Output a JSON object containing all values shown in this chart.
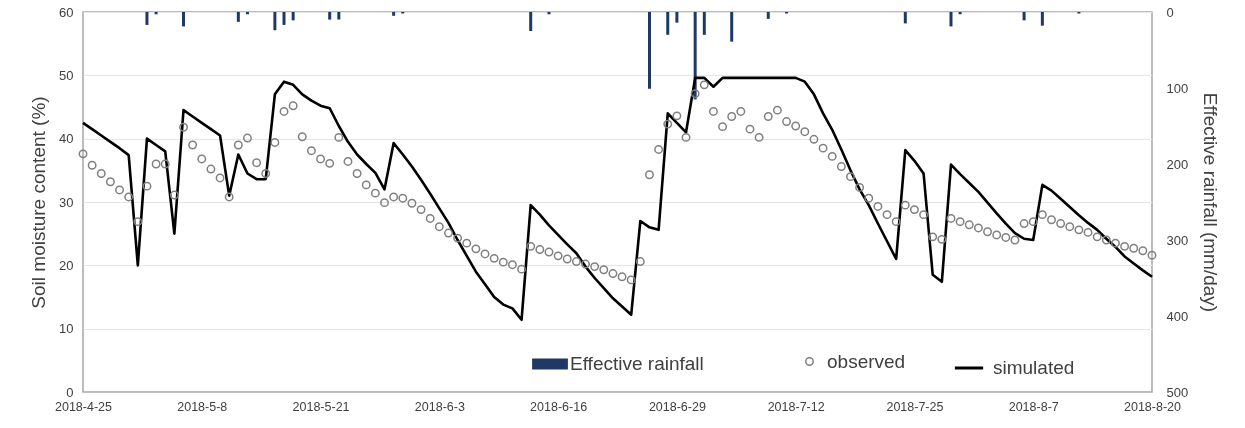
{
  "chart_data": {
    "type": "line",
    "xlabel": null,
    "ylabel": "Soil moisture content (%)",
    "y2label": "Effective rainfall (mm/day)",
    "x": [
      "2018-04-25",
      "2018-04-26",
      "2018-04-27",
      "2018-04-28",
      "2018-04-29",
      "2018-04-30",
      "2018-05-01",
      "2018-05-02",
      "2018-05-03",
      "2018-05-04",
      "2018-05-05",
      "2018-05-06",
      "2018-05-07",
      "2018-05-08",
      "2018-05-09",
      "2018-05-10",
      "2018-05-11",
      "2018-05-12",
      "2018-05-13",
      "2018-05-14",
      "2018-05-15",
      "2018-05-16",
      "2018-05-17",
      "2018-05-18",
      "2018-05-19",
      "2018-05-20",
      "2018-05-21",
      "2018-05-22",
      "2018-05-23",
      "2018-05-24",
      "2018-05-25",
      "2018-05-26",
      "2018-05-27",
      "2018-05-28",
      "2018-05-29",
      "2018-05-30",
      "2018-05-31",
      "2018-06-01",
      "2018-06-02",
      "2018-06-03",
      "2018-06-04",
      "2018-06-05",
      "2018-06-06",
      "2018-06-07",
      "2018-06-08",
      "2018-06-09",
      "2018-06-10",
      "2018-06-11",
      "2018-06-12",
      "2018-06-13",
      "2018-06-14",
      "2018-06-15",
      "2018-06-16",
      "2018-06-17",
      "2018-06-18",
      "2018-06-19",
      "2018-06-20",
      "2018-06-21",
      "2018-06-22",
      "2018-06-23",
      "2018-06-24",
      "2018-06-25",
      "2018-06-26",
      "2018-06-27",
      "2018-06-28",
      "2018-06-29",
      "2018-06-30",
      "2018-07-01",
      "2018-07-02",
      "2018-07-03",
      "2018-07-04",
      "2018-07-05",
      "2018-07-06",
      "2018-07-07",
      "2018-07-08",
      "2018-07-09",
      "2018-07-10",
      "2018-07-11",
      "2018-07-12",
      "2018-07-13",
      "2018-07-14",
      "2018-07-15",
      "2018-07-16",
      "2018-07-17",
      "2018-07-18",
      "2018-07-19",
      "2018-07-20",
      "2018-07-21",
      "2018-07-22",
      "2018-07-23",
      "2018-07-24",
      "2018-07-25",
      "2018-07-26",
      "2018-07-27",
      "2018-07-28",
      "2018-07-29",
      "2018-07-30",
      "2018-07-31",
      "2018-08-01",
      "2018-08-02",
      "2018-08-03",
      "2018-08-04",
      "2018-08-05",
      "2018-08-06",
      "2018-08-07",
      "2018-08-08",
      "2018-08-09",
      "2018-08-10",
      "2018-08-11",
      "2018-08-12",
      "2018-08-13",
      "2018-08-14",
      "2018-08-15",
      "2018-08-16",
      "2018-08-17",
      "2018-08-18",
      "2018-08-19",
      "2018-08-20"
    ],
    "series": [
      {
        "name": "Effective rainfall",
        "type": "bar",
        "axis": "y2",
        "color": "#203864",
        "x": [
          "2018-05-02",
          "2018-05-03",
          "2018-05-06",
          "2018-05-12",
          "2018-05-13",
          "2018-05-16",
          "2018-05-17",
          "2018-05-18",
          "2018-05-22",
          "2018-05-23",
          "2018-05-29",
          "2018-05-30",
          "2018-06-13",
          "2018-06-15",
          "2018-06-26",
          "2018-06-28",
          "2018-06-29",
          "2018-07-01",
          "2018-07-02",
          "2018-07-05",
          "2018-07-09",
          "2018-07-11",
          "2018-07-24",
          "2018-07-29",
          "2018-07-30",
          "2018-08-06",
          "2018-08-08",
          "2018-08-12"
        ],
        "values": [
          17,
          3,
          19,
          13,
          3,
          24,
          17,
          11,
          10,
          10,
          5,
          2,
          25,
          3,
          101,
          30,
          14,
          115,
          30,
          39,
          9,
          2,
          15,
          19,
          3,
          11,
          18,
          2
        ]
      },
      {
        "name": "observed",
        "type": "scatter",
        "marker": "circle",
        "color": "#808080",
        "values": [
          37.6,
          35.8,
          34.5,
          33.2,
          31.9,
          30.8,
          26.9,
          32.5,
          36,
          36,
          31.1,
          41.8,
          39,
          36.8,
          35.2,
          33.8,
          30.8,
          39,
          40.1,
          36.2,
          34.5,
          39.4,
          44.3,
          45.2,
          40.3,
          38.1,
          36.8,
          36.1,
          40.2,
          36.4,
          34.5,
          32.7,
          31.4,
          29.9,
          30.8,
          30.6,
          29.8,
          28.8,
          27.4,
          26.1,
          25.1,
          24.3,
          23.5,
          22.6,
          21.8,
          21.1,
          20.5,
          20.1,
          19.4,
          23,
          22.5,
          22.1,
          21.5,
          21,
          20.6,
          20.2,
          19.8,
          19.3,
          18.7,
          18.2,
          17.7,
          20.6,
          34.3,
          38.3,
          42.3,
          43.6,
          40.2,
          47.1,
          48.5,
          44.3,
          41.9,
          43.5,
          44.3,
          41.5,
          40.2,
          43.5,
          44.5,
          42.7,
          42,
          41.1,
          39.9,
          38.5,
          37.2,
          35.6,
          34,
          32.3,
          30.6,
          29.3,
          28,
          26.9,
          29.5,
          28.8,
          28,
          24.5,
          24.1,
          27.4,
          26.9,
          26.4,
          25.9,
          25.3,
          24.8,
          24.4,
          24,
          26.6,
          26.9,
          28,
          27.2,
          26.6,
          26.1,
          25.6,
          25.2,
          24.5,
          24,
          23.5,
          23,
          22.7,
          22.3,
          21.6
        ]
      },
      {
        "name": "simulated",
        "type": "line",
        "color": "#000000",
        "values": [
          42.5,
          41.5,
          40.5,
          39.5,
          38.5,
          37.4,
          20,
          40,
          39,
          38,
          25,
          44.5,
          43.5,
          42.5,
          41.5,
          40.5,
          31,
          37.5,
          34.5,
          33.6,
          33.6,
          47,
          49,
          48.5,
          47,
          46,
          45.2,
          44.8,
          42,
          39.5,
          37.5,
          36,
          34.6,
          32,
          39.3,
          37.5,
          35.6,
          33.5,
          31.3,
          29,
          26.7,
          24,
          21.5,
          19,
          17,
          15,
          13.8,
          13.2,
          11.4,
          29.5,
          28,
          26.3,
          24.8,
          23.3,
          21.9,
          19.8,
          18,
          16.4,
          14.8,
          13.5,
          12.2,
          27,
          26,
          25.6,
          44,
          42.5,
          41,
          49.6,
          49.6,
          48.2,
          49.6,
          49.6,
          49.6,
          49.6,
          49.6,
          49.6,
          49.6,
          49.6,
          49.6,
          49,
          47,
          44,
          41.4,
          38.3,
          35,
          32,
          29.5,
          26.6,
          23.8,
          21,
          38.2,
          36.5,
          34.5,
          18.5,
          17.4,
          35.9,
          34.4,
          33,
          31.6,
          29.9,
          28.2,
          26.6,
          25.1,
          24.2,
          24,
          32.7,
          31.8,
          30.5,
          29.2,
          27.9,
          26.7,
          25.6,
          24.2,
          22.9,
          21.4,
          20.3,
          19.2,
          18.2
        ]
      }
    ],
    "xlim": [
      "2018-04-25",
      "2018-08-20"
    ],
    "xticks": [
      {
        "value": "2018-04-25",
        "label": "2018-4-25"
      },
      {
        "value": "2018-05-08",
        "label": "2018-5-8"
      },
      {
        "value": "2018-05-21",
        "label": "2018-5-21"
      },
      {
        "value": "2018-06-03",
        "label": "2018-6-3"
      },
      {
        "value": "2018-06-16",
        "label": "2018-6-16"
      },
      {
        "value": "2018-06-29",
        "label": "2018-6-29"
      },
      {
        "value": "2018-07-12",
        "label": "2018-7-12"
      },
      {
        "value": "2018-07-25",
        "label": "2018-7-25"
      },
      {
        "value": "2018-08-07",
        "label": "2018-8-7"
      },
      {
        "value": "2018-08-20",
        "label": "2018-8-20"
      }
    ],
    "ylim": [
      0,
      60
    ],
    "yticks": [
      0,
      10,
      20,
      30,
      40,
      50,
      60
    ],
    "y2lim": [
      500,
      0
    ],
    "y2ticks": [
      0,
      100,
      200,
      300,
      400,
      500
    ],
    "grid": "y",
    "legend": "bottom right"
  }
}
